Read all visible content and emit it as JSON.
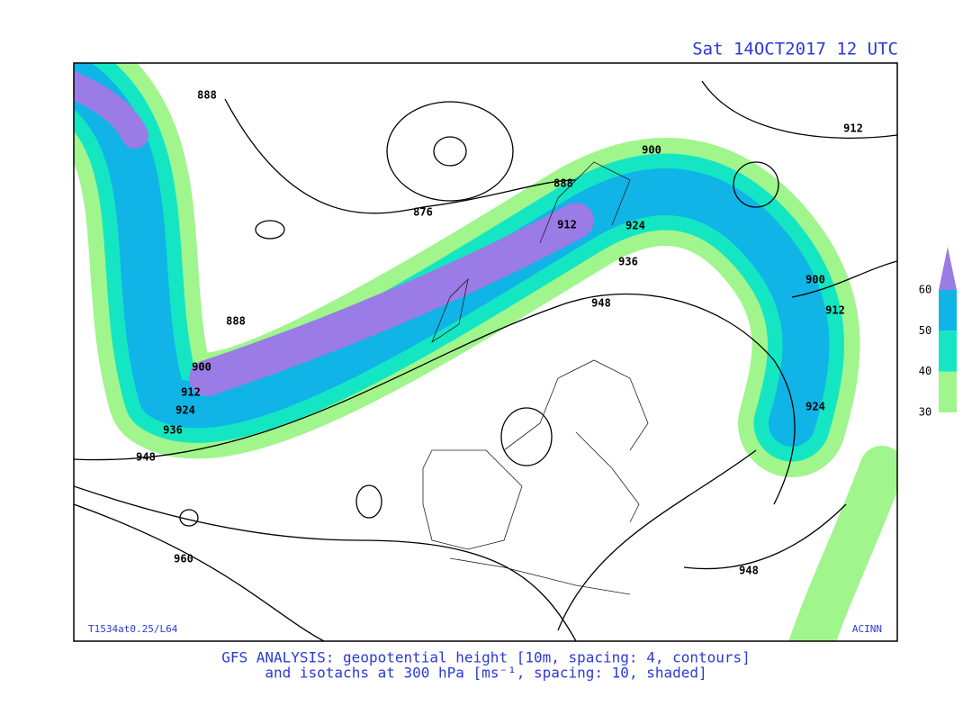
{
  "header": {
    "title": "Sat 14OCT2017 12 UTC"
  },
  "map": {
    "contour_labels": [
      "888",
      "876",
      "888",
      "900",
      "912",
      "912",
      "924",
      "936",
      "948",
      "888",
      "900",
      "912",
      "924",
      "936",
      "948",
      "960",
      "948",
      "900",
      "912",
      "924"
    ],
    "model_note": "T1534at0.25/L64",
    "credit": "ACINN"
  },
  "legend": {
    "levels": [
      30,
      40,
      50,
      60
    ],
    "colors": [
      "#a0f58c",
      "#14e6c3",
      "#10b4e6",
      "#9b7be6"
    ]
  },
  "footer": {
    "line1": "GFS ANALYSIS: geopotential height [10m, spacing: 4, contours]",
    "line2": "and isotachs at 300 hPa [ms⁻¹, spacing: 10, shaded]"
  }
}
